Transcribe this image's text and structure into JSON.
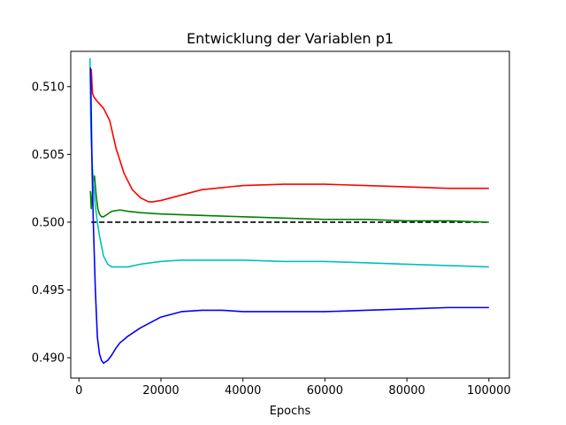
{
  "chart_data": {
    "type": "line",
    "title": "Entwicklung der Variablen p1",
    "xlabel": "Epochs",
    "ylabel": "",
    "xlim": [
      -2000,
      105000
    ],
    "ylim": [
      0.4885,
      0.5126
    ],
    "xticks": [
      0,
      20000,
      40000,
      60000,
      80000,
      100000
    ],
    "xtick_labels": [
      "0",
      "20000",
      "40000",
      "60000",
      "80000",
      "100000"
    ],
    "yticks": [
      0.49,
      0.495,
      0.5,
      0.505,
      0.51
    ],
    "ytick_labels": [
      "0.490",
      "0.495",
      "0.500",
      "0.505",
      "0.510"
    ],
    "grid": false,
    "legend": "none",
    "series": [
      {
        "color": "#000000",
        "dashed": true,
        "x": [
          3000,
          100000
        ],
        "y": [
          0.5,
          0.5
        ]
      },
      {
        "color": "#ff0000",
        "dashed": false,
        "x": [
          3000,
          3300,
          3700,
          4500,
          6000,
          7500,
          9000,
          11000,
          13000,
          15000,
          17000,
          18000,
          20000,
          25000,
          30000,
          40000,
          50000,
          60000,
          70000,
          80000,
          90000,
          100000
        ],
        "y": [
          0.5113,
          0.5095,
          0.5092,
          0.5089,
          0.5084,
          0.5075,
          0.5055,
          0.5036,
          0.5024,
          0.5018,
          0.5015,
          0.5015,
          0.5016,
          0.502,
          0.5024,
          0.5027,
          0.5028,
          0.5028,
          0.5027,
          0.5026,
          0.5025,
          0.5025
        ]
      },
      {
        "color": "#008000",
        "dashed": false,
        "x": [
          2800,
          3000,
          3200,
          3500,
          3800,
          4200,
          4600,
          5000,
          5500,
          6000,
          7000,
          8000,
          10000,
          12000,
          15000,
          20000,
          30000,
          40000,
          50000,
          60000,
          70000,
          80000,
          90000,
          100000
        ],
        "y": [
          0.5023,
          0.501,
          0.5018,
          0.503,
          0.5034,
          0.502,
          0.501,
          0.5006,
          0.5004,
          0.5004,
          0.5006,
          0.5008,
          0.5009,
          0.5008,
          0.5007,
          0.5006,
          0.5005,
          0.5004,
          0.5003,
          0.5002,
          0.5002,
          0.5001,
          0.5001,
          0.5
        ]
      },
      {
        "color": "#00bfbf",
        "dashed": false,
        "x": [
          2700,
          2850,
          3000,
          3200,
          3500,
          4000,
          4500,
          5000,
          6000,
          7000,
          8000,
          10000,
          12000,
          15000,
          20000,
          25000,
          30000,
          40000,
          50000,
          60000,
          70000,
          80000,
          90000,
          100000
        ],
        "y": [
          0.5121,
          0.508,
          0.506,
          0.5045,
          0.503,
          0.5012,
          0.5,
          0.499,
          0.4975,
          0.4969,
          0.4967,
          0.4967,
          0.4967,
          0.4969,
          0.4971,
          0.4972,
          0.4972,
          0.4972,
          0.4971,
          0.4971,
          0.497,
          0.4969,
          0.4968,
          0.4967
        ]
      },
      {
        "color": "#0000ff",
        "dashed": false,
        "x": [
          2800,
          2900,
          3000,
          3200,
          3500,
          4000,
          4500,
          5000,
          5500,
          6000,
          6500,
          7000,
          8000,
          9000,
          10000,
          12000,
          15000,
          20000,
          25000,
          30000,
          35000,
          40000,
          50000,
          60000,
          70000,
          80000,
          90000,
          100000
        ],
        "y": [
          0.5114,
          0.51,
          0.508,
          0.504,
          0.5,
          0.495,
          0.4915,
          0.4903,
          0.4898,
          0.4896,
          0.4897,
          0.4898,
          0.4902,
          0.4907,
          0.4911,
          0.4916,
          0.4922,
          0.493,
          0.4934,
          0.4935,
          0.4935,
          0.4934,
          0.4934,
          0.4934,
          0.4935,
          0.4936,
          0.4937,
          0.4937
        ]
      }
    ]
  }
}
